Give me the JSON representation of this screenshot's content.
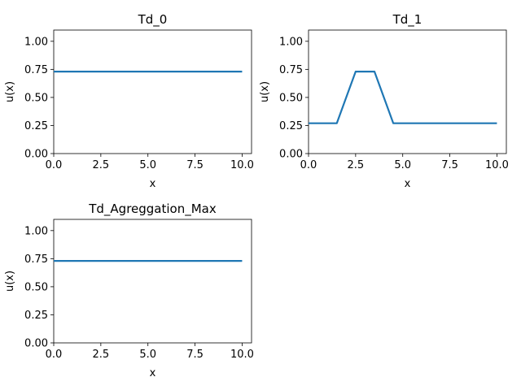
{
  "chart_data": [
    {
      "type": "line",
      "title": "Td_0",
      "xlabel": "x",
      "ylabel": "u(x)",
      "xlim": [
        0.0,
        10.5
      ],
      "ylim": [
        0.0,
        1.1
      ],
      "x_ticks": [
        "0.0",
        "2.5",
        "5.0",
        "7.5",
        "10.0"
      ],
      "y_ticks": [
        "0.00",
        "0.25",
        "0.50",
        "0.75",
        "1.00"
      ],
      "grid": false,
      "color": "#1f77b4",
      "series": [
        {
          "x": [
            0,
            10
          ],
          "y": [
            0.73,
            0.73
          ]
        }
      ]
    },
    {
      "type": "line",
      "title": "Td_1",
      "xlabel": "x",
      "ylabel": "u(x)",
      "xlim": [
        0.0,
        10.5
      ],
      "ylim": [
        0.0,
        1.1
      ],
      "x_ticks": [
        "0.0",
        "2.5",
        "5.0",
        "7.5",
        "10.0"
      ],
      "y_ticks": [
        "0.00",
        "0.25",
        "0.50",
        "0.75",
        "1.00"
      ],
      "grid": false,
      "color": "#1f77b4",
      "series": [
        {
          "x": [
            0,
            1.5,
            2.5,
            3.5,
            4.5,
            10
          ],
          "y": [
            0.27,
            0.27,
            0.73,
            0.73,
            0.27,
            0.27
          ]
        }
      ]
    },
    {
      "type": "line",
      "title": "Td_Agreggation_Max",
      "xlabel": "x",
      "ylabel": "u(x)",
      "xlim": [
        0.0,
        10.5
      ],
      "ylim": [
        0.0,
        1.1
      ],
      "x_ticks": [
        "0.0",
        "2.5",
        "5.0",
        "7.5",
        "10.0"
      ],
      "y_ticks": [
        "0.00",
        "0.25",
        "0.50",
        "0.75",
        "1.00"
      ],
      "grid": false,
      "color": "#1f77b4",
      "series": [
        {
          "x": [
            0,
            10
          ],
          "y": [
            0.73,
            0.73
          ]
        }
      ]
    }
  ]
}
